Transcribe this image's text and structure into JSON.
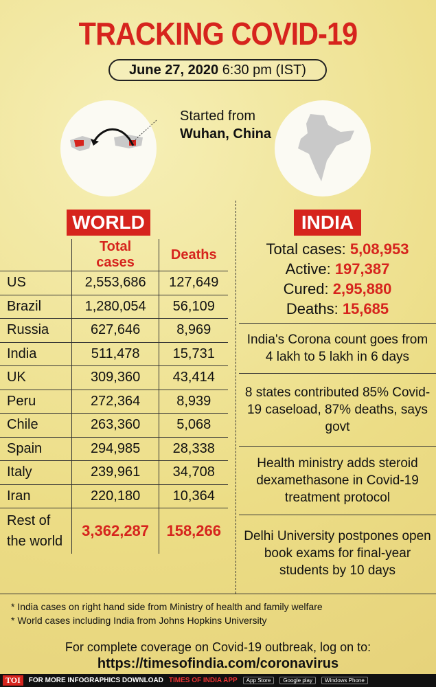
{
  "header": {
    "title": "TRACKING COVID-19",
    "date": "June 27, 2020",
    "time": "6:30 pm (IST)"
  },
  "origin": {
    "label": "Started from",
    "place": "Wuhan, China"
  },
  "world": {
    "label": "WORLD",
    "columns": [
      "Total cases",
      "Deaths"
    ],
    "rows": [
      [
        "US",
        "2,553,686",
        "127,649"
      ],
      [
        "Brazil",
        "1,280,054",
        "56,109"
      ],
      [
        "Russia",
        "627,646",
        "8,969"
      ],
      [
        "India",
        "511,478",
        "15,731"
      ],
      [
        "UK",
        "309,360",
        "43,414"
      ],
      [
        "Peru",
        "272,364",
        "8,939"
      ],
      [
        "Chile",
        "263,360",
        "5,068"
      ],
      [
        "Spain",
        "294,985",
        "28,338"
      ],
      [
        "Italy",
        "239,961",
        "34,708"
      ],
      [
        "Iran",
        "220,180",
        "10,364"
      ]
    ],
    "rest": [
      "Rest of the world",
      "3,362,287",
      "158,266"
    ]
  },
  "india": {
    "label": "INDIA",
    "stats": [
      {
        "label": "Total cases:",
        "value": "5,08,953"
      },
      {
        "label": "Active:",
        "value": "197,387"
      },
      {
        "label": "Cured:",
        "value": "2,95,880"
      },
      {
        "label": "Deaths:",
        "value": "15,685"
      }
    ],
    "news": [
      "India's Corona count goes from 4 lakh to 5 lakh in 6 days",
      "8 states contributed 85% Covid-19 caseload, 87% deaths, says govt",
      "Health ministry adds steroid dexamethasone in Covid-19 treatment protocol",
      "Delhi University postpones open book exams for final-year students by 10 days"
    ]
  },
  "footnotes": [
    "* India cases on right hand side from Ministry of health and family welfare",
    "* World cases including India from Johns Hopkins University"
  ],
  "footer": {
    "coverage": "For complete coverage on Covid-19 outbreak, log on to:",
    "url": "https://timesofindia.com/coronavirus"
  },
  "bar": {
    "logo": "TOI",
    "promo": "FOR MORE INFOGRAPHICS DOWNLOAD",
    "app": "TIMES OF INDIA APP",
    "stores": [
      "App Store",
      "Google play",
      "Windows Phone"
    ]
  }
}
